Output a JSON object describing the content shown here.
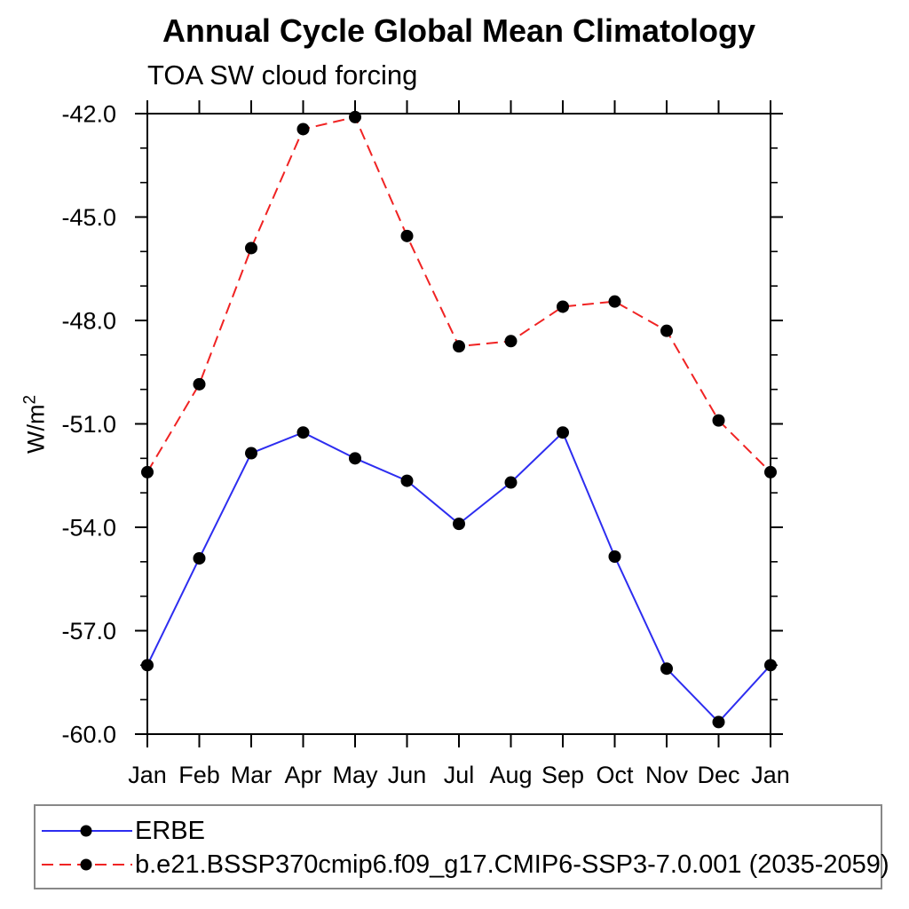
{
  "title": "Annual Cycle Global Mean Climatology",
  "subtitle": "TOA SW cloud forcing",
  "y_axis": {
    "label_base": "W/m",
    "label_sup": "2"
  },
  "colors": {
    "background": "#ffffff",
    "axis": "#000000",
    "text": "#000000",
    "legend_border": "#888888",
    "marker": "#000000"
  },
  "chart_data": {
    "type": "line",
    "title": "Annual Cycle Global Mean Climatology",
    "subtitle": "TOA SW cloud forcing",
    "ylabel": "W/m2",
    "xlabel": "",
    "grid": false,
    "legend_position": "bottom",
    "x_categories": [
      "Jan",
      "Feb",
      "Mar",
      "Apr",
      "May",
      "Jun",
      "Jul",
      "Aug",
      "Sep",
      "Oct",
      "Nov",
      "Dec",
      "Jan"
    ],
    "ylim": [
      -60.0,
      -42.0
    ],
    "y_ticks": [
      -42.0,
      -45.0,
      -48.0,
      -51.0,
      -54.0,
      -57.0,
      -60.0
    ],
    "y_tick_labels": [
      "-42.0",
      "-45.0",
      "-48.0",
      "-51.0",
      "-54.0",
      "-57.0",
      "-60.0"
    ],
    "y_minor_tick_interval": 1.0,
    "series": [
      {
        "name": "ERBE",
        "color": "#2d2df0",
        "line_style": "solid",
        "marker": "filled-circle",
        "marker_color": "#000000",
        "values": [
          -58.0,
          -54.9,
          -51.85,
          -51.25,
          -52.0,
          -52.65,
          -53.9,
          -52.7,
          -51.25,
          -54.85,
          -58.1,
          -59.65,
          -58.0
        ]
      },
      {
        "name": "b.e21.BSSP370cmip6.f09_g17.CMIP6-SSP3-7.0.001 (2035-2059)",
        "color": "#f02323",
        "line_style": "dashed",
        "marker": "filled-circle",
        "marker_color": "#000000",
        "values": [
          -52.4,
          -49.85,
          -45.9,
          -42.45,
          -42.1,
          -45.55,
          -48.75,
          -48.6,
          -47.6,
          -47.45,
          -48.3,
          -50.9,
          -52.4
        ]
      }
    ]
  }
}
